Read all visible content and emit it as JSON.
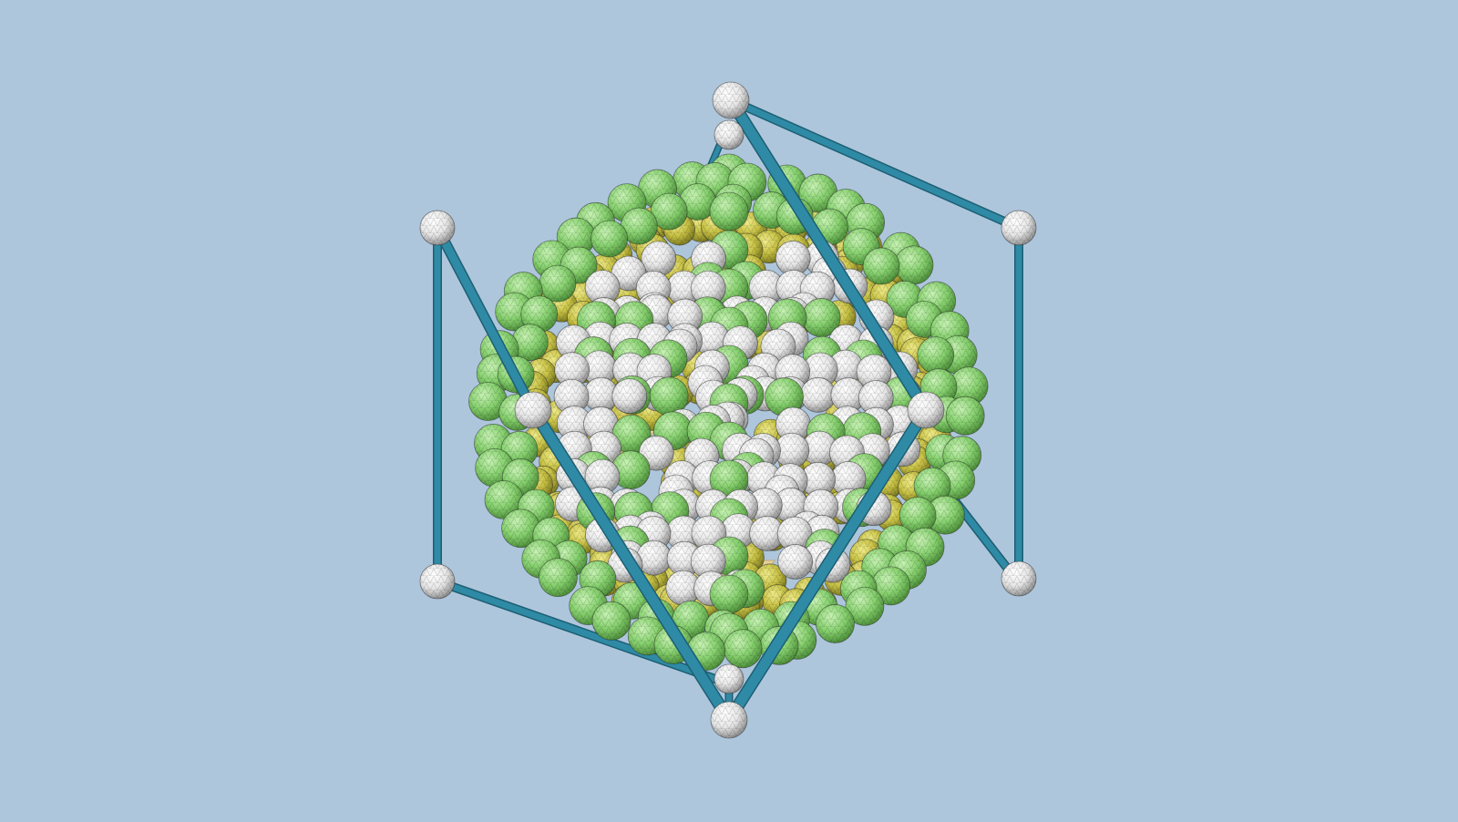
{
  "scene": {
    "background": "#aec6dc",
    "strut_color": "#2f8aa5",
    "strut_edge": "#1d5f73",
    "ball_colors": {
      "white": "#e8e8e8",
      "green": "#8fd67a",
      "yellow": "#c9c44a"
    },
    "panel_color": "#e7cf9a",
    "panel_shade": "#c3a877"
  }
}
